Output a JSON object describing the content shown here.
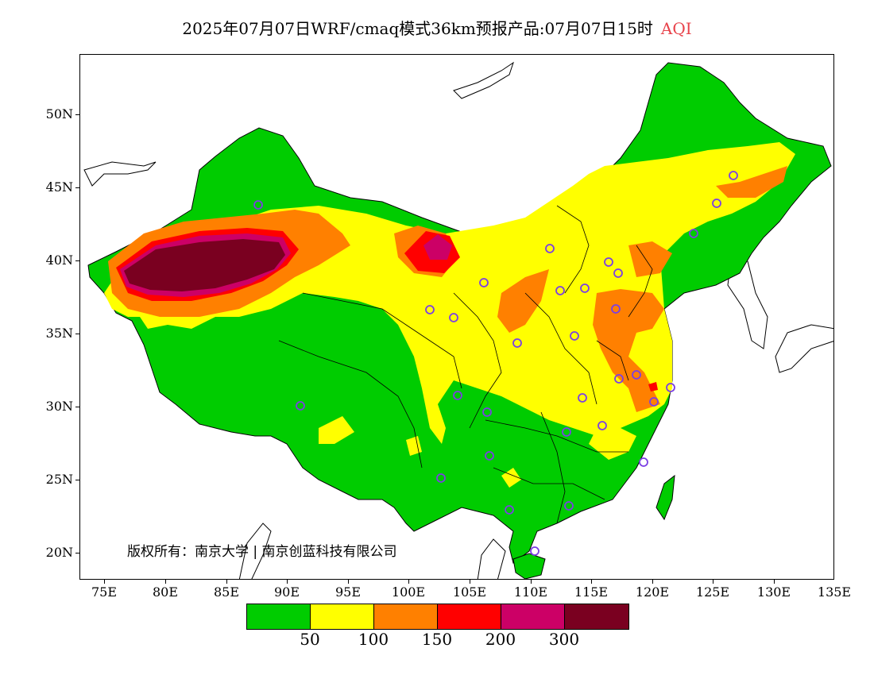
{
  "title": {
    "main": "2025年07月07日WRF/cmaq模式36km预报产品:07月07日15时",
    "variable": "AQI"
  },
  "map": {
    "lon_range": [
      73,
      135
    ],
    "lat_range": [
      18,
      54
    ],
    "lat_ticks": [
      "50N",
      "45N",
      "40N",
      "35N",
      "30N",
      "25N",
      "20N"
    ],
    "lon_ticks": [
      "75E",
      "80E",
      "85E",
      "90E",
      "95E",
      "100E",
      "105E",
      "110E",
      "115E",
      "120E",
      "125E",
      "130E",
      "135E"
    ],
    "copyright": "版权所有：南京大学 | 南京创蓝科技有限公司",
    "station_marker_color": "#7b3fe4",
    "background_color": "#ffffff"
  },
  "legend": {
    "colors": [
      "#00cc00",
      "#ffff00",
      "#ff8000",
      "#ff0000",
      "#cc0066",
      "#7a0020"
    ],
    "labels": [
      "50",
      "100",
      "150",
      "200",
      "300"
    ]
  }
}
